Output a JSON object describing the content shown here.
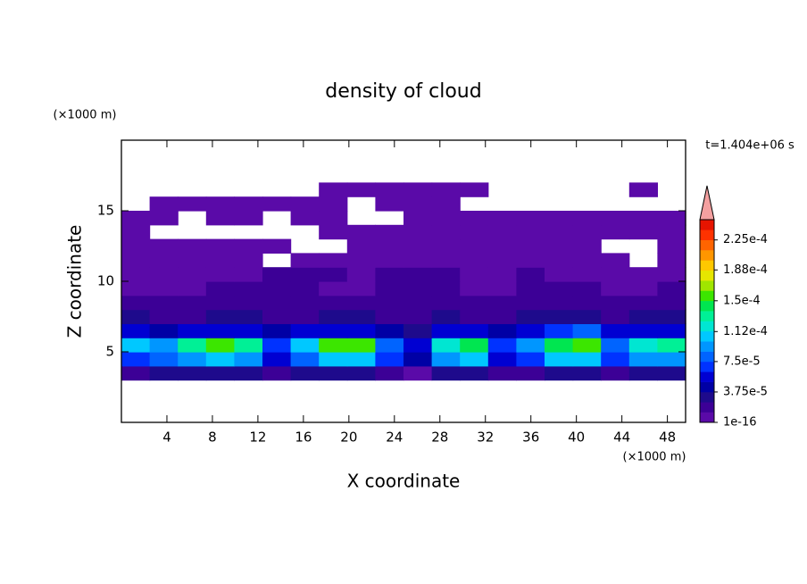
{
  "chart_data": {
    "type": "contour",
    "title": "density of cloud",
    "x_label": "X coordinate",
    "y_label": "Z coordinate",
    "x_unit": "(×1000 m)",
    "y_unit": "(×1000 m)",
    "time_label": "t=1.404e+06 s",
    "xlim": [
      0,
      49.6
    ],
    "ylim": [
      0,
      20
    ],
    "xticks": [
      4,
      8,
      12,
      16,
      20,
      24,
      28,
      32,
      36,
      40,
      44,
      48
    ],
    "yticks": [
      5,
      10,
      15
    ],
    "x_edges": [
      0,
      2.48,
      4.96,
      7.44,
      9.92,
      12.4,
      14.88,
      17.36,
      19.84,
      22.32,
      24.8,
      27.28,
      29.76,
      32.24,
      34.72,
      37.2,
      39.68,
      42.16,
      44.64,
      47.12,
      49.6
    ],
    "z_edges": [
      0,
      1,
      2,
      3,
      4,
      5,
      6,
      7,
      8,
      9,
      10,
      11,
      12,
      13,
      14,
      15,
      16,
      17,
      18,
      19,
      20
    ],
    "levels": [
      1e-16,
      1.25e-05,
      2.5e-05,
      3.75e-05,
      5e-05,
      6.25e-05,
      7.5e-05,
      8.75e-05,
      0.0001,
      0.0001125,
      0.000125,
      0.0001375,
      0.00015,
      0.0001625,
      0.000175,
      0.0001875,
      0.0002,
      0.0002125,
      0.000225,
      0.0002375,
      0.00025
    ],
    "colors": [
      "#5a0aa8",
      "#3c0096",
      "#1e0a8c",
      "#0000a5",
      "#0000d2",
      "#0032ff",
      "#0064ff",
      "#0096ff",
      "#00c8ff",
      "#00e6d2",
      "#00f096",
      "#00e650",
      "#3ce600",
      "#a0e600",
      "#e6e600",
      "#ffc800",
      "#ff9600",
      "#ff6400",
      "#ff3200",
      "#e61400"
    ],
    "extend_color": "#f4a0a0",
    "colorbar_ticks": [
      {
        "value": 1e-16,
        "label": "1e-16"
      },
      {
        "value": 3.75e-05,
        "label": "3.75e-5"
      },
      {
        "value": 7.5e-05,
        "label": "7.5e-5"
      },
      {
        "value": 0.000112,
        "label": "1.12e-4"
      },
      {
        "value": 0.00015,
        "label": "1.5e-4"
      },
      {
        "value": 0.000188,
        "label": "1.88e-4"
      },
      {
        "value": 0.000225,
        "label": "2.25e-4"
      }
    ],
    "values": [
      [
        null,
        null,
        null,
        null,
        null,
        null,
        null,
        null,
        null,
        null,
        null,
        null,
        null,
        null,
        null,
        null,
        null,
        null,
        null,
        null
      ],
      [
        null,
        null,
        null,
        null,
        null,
        null,
        null,
        null,
        null,
        null,
        null,
        null,
        null,
        null,
        null,
        null,
        null,
        null,
        null,
        null
      ],
      [
        null,
        null,
        null,
        null,
        null,
        null,
        null,
        null,
        null,
        null,
        null,
        null,
        null,
        null,
        null,
        null,
        null,
        null,
        null,
        null
      ],
      [
        2e-05,
        3e-05,
        3e-05,
        3e-05,
        3e-05,
        2e-05,
        2.5e-05,
        3e-05,
        3e-05,
        2e-05,
        1e-05,
        3e-05,
        3e-05,
        2e-05,
        2e-05,
        3e-05,
        3e-05,
        2e-05,
        3e-05,
        3e-05
      ],
      [
        7e-05,
        8e-05,
        9e-05,
        0.0001,
        9e-05,
        6e-05,
        8e-05,
        0.000105,
        0.0001,
        7e-05,
        4e-05,
        9e-05,
        0.0001,
        6e-05,
        7e-05,
        0.0001,
        0.000105,
        7e-05,
        9e-05,
        9e-05
      ],
      [
        0.00011,
        9e-05,
        0.00013,
        0.00015,
        0.00013,
        7e-05,
        0.00011,
        0.000155,
        0.00015,
        8e-05,
        5e-05,
        0.00012,
        0.00014,
        7e-05,
        9e-05,
        0.000145,
        0.00016,
        8e-05,
        0.00012,
        0.00013
      ],
      [
        5e-05,
        4e-05,
        5e-05,
        6e-05,
        6e-05,
        4e-05,
        5e-05,
        6e-05,
        6e-05,
        4e-05,
        3e-05,
        5e-05,
        5e-05,
        4e-05,
        5e-05,
        7e-05,
        8e-05,
        5e-05,
        6e-05,
        6e-05
      ],
      [
        2.5e-05,
        2e-05,
        2e-05,
        3e-05,
        2.5e-05,
        2e-05,
        2e-05,
        2.5e-05,
        3e-05,
        2e-05,
        2e-05,
        2.5e-05,
        2e-05,
        2e-05,
        2.5e-05,
        3e-05,
        3.5e-05,
        2e-05,
        2.5e-05,
        3e-05
      ],
      [
        1.5e-05,
        1.5e-05,
        1.5e-05,
        1.8e-05,
        2e-05,
        1.8e-05,
        1.5e-05,
        1.8e-05,
        2e-05,
        1.5e-05,
        1.5e-05,
        1.5e-05,
        1.5e-05,
        1.5e-05,
        1.8e-05,
        2e-05,
        2e-05,
        1.5e-05,
        1.5e-05,
        1.8e-05
      ],
      [
        1e-05,
        8e-06,
        1.2e-05,
        1.4e-05,
        1.3e-05,
        1.4e-05,
        1.3e-05,
        1e-05,
        1.2e-05,
        1.4e-05,
        1.3e-05,
        1.3e-05,
        1e-05,
        1.2e-05,
        1.3e-05,
        1.4e-05,
        1.3e-05,
        1e-05,
        1.2e-05,
        1.3e-05
      ],
      [
        5e-06,
        6e-06,
        8e-06,
        1e-05,
        1.1e-05,
        1.3e-05,
        1.4e-05,
        1.3e-05,
        1.2e-05,
        1.3e-05,
        1.4e-05,
        1.3e-05,
        1.2e-05,
        1.1e-05,
        1.3e-05,
        1.2e-05,
        1e-05,
        8e-06,
        6e-06,
        5e-06
      ],
      [
        5e-06,
        5e-06,
        5e-06,
        5e-06,
        5e-06,
        null,
        6e-06,
        8e-06,
        8e-06,
        8e-06,
        1e-05,
        1e-05,
        1e-05,
        8e-06,
        6e-06,
        8e-06,
        6e-06,
        5e-06,
        null,
        5e-06
      ],
      [
        3e-06,
        3e-06,
        3e-06,
        4e-06,
        4e-06,
        5e-06,
        null,
        null,
        5e-06,
        6e-06,
        8e-06,
        8e-06,
        8e-06,
        6e-06,
        6e-06,
        5e-06,
        4e-06,
        null,
        null,
        3e-06
      ],
      [
        3e-06,
        null,
        null,
        null,
        null,
        null,
        null,
        3e-06,
        4e-06,
        5e-06,
        6e-06,
        6e-06,
        5e-06,
        5e-06,
        4e-06,
        4e-06,
        4e-06,
        3e-06,
        3e-06,
        3e-06
      ],
      [
        3e-06,
        3e-06,
        null,
        3e-06,
        3e-06,
        null,
        3e-06,
        3e-06,
        null,
        null,
        4e-06,
        4e-06,
        3e-06,
        3e-06,
        3e-06,
        3e-06,
        3e-06,
        3e-06,
        3e-06,
        3e-06
      ],
      [
        null,
        3e-06,
        3e-06,
        3e-06,
        3e-06,
        3e-06,
        3e-06,
        3e-06,
        null,
        3e-06,
        3e-06,
        3e-06,
        null,
        null,
        null,
        null,
        null,
        null,
        null,
        null
      ],
      [
        null,
        null,
        null,
        null,
        null,
        null,
        null,
        3e-06,
        3e-06,
        3e-06,
        3e-06,
        3e-06,
        3e-06,
        null,
        null,
        null,
        null,
        null,
        3e-06,
        null
      ],
      [
        null,
        null,
        null,
        null,
        null,
        null,
        null,
        null,
        null,
        null,
        null,
        null,
        null,
        null,
        null,
        null,
        null,
        null,
        null,
        null
      ],
      [
        null,
        null,
        null,
        null,
        null,
        null,
        null,
        null,
        null,
        null,
        null,
        null,
        null,
        null,
        null,
        null,
        null,
        null,
        null,
        null
      ],
      [
        null,
        null,
        null,
        null,
        null,
        null,
        null,
        null,
        null,
        null,
        null,
        null,
        null,
        null,
        null,
        null,
        null,
        null,
        null,
        null
      ]
    ]
  }
}
